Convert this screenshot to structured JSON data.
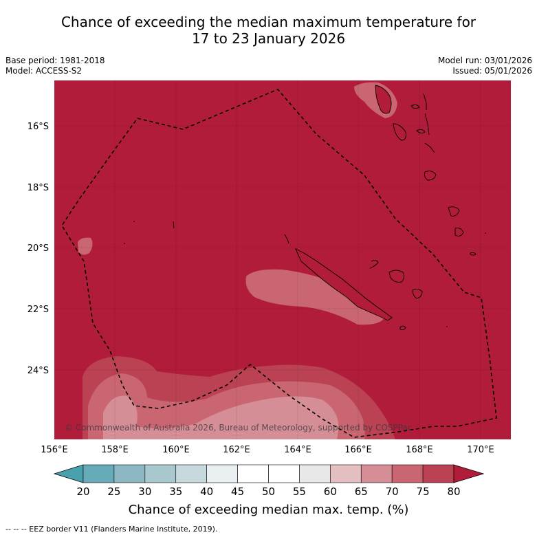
{
  "title": {
    "line1": "Chance of exceeding the median maximum temperature for",
    "line2": "17 to 23 January 2026"
  },
  "meta": {
    "base_period": "Base period: 1981-2018",
    "model": "Model: ACCESS-S2",
    "model_run": "Model run: 03/01/2026",
    "issued": "Issued: 05/01/2026"
  },
  "map": {
    "lon_range": [
      156,
      171
    ],
    "lat_range": [
      -26,
      -14.7
    ],
    "lat_ticks": [
      "16°S",
      "18°S",
      "20°S",
      "22°S",
      "24°S"
    ],
    "lon_ticks": [
      "156°E",
      "158°E",
      "160°E",
      "162°E",
      "164°E",
      "166°E",
      "168°E",
      "170°E"
    ],
    "copyright": "© Commonwealth of Australia 2026, Bureau of Meteorology, supported by COSPPac"
  },
  "colorbar": {
    "ticks": [
      "20",
      "25",
      "30",
      "35",
      "40",
      "45",
      "50",
      "55",
      "60",
      "65",
      "70",
      "75",
      "80"
    ],
    "colors": [
      "#67aab8",
      "#8db7c2",
      "#a9c8ce",
      "#c8d9de",
      "#eaf0f2",
      "#ffffff",
      "#ffffff",
      "#e8e8e8",
      "#e4bfc2",
      "#d68e96",
      "#c96671",
      "#bb4253"
    ],
    "low_extend_color": "#4ba0b0",
    "high_extend_color": "#b01c3a",
    "label": "Chance of exceeding median max. temp. (%)"
  },
  "colors": {
    "base": "#b01c3a",
    "band_75_80": "#bb4253",
    "band_70_75": "#c96671",
    "band_65_70": "#d68e96"
  },
  "legend_footer": "--  --  -- EEZ border V11 (Flanders Marine Institute, 2019)."
}
